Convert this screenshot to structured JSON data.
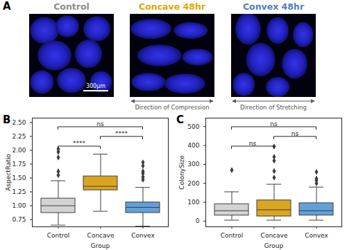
{
  "panel_a": {
    "label": "A",
    "images": [
      {
        "title": "Control",
        "color": "#8c8c8c"
      },
      {
        "title": "Concave 48hr",
        "color": "#e3a600"
      },
      {
        "title": "Convex 48hr",
        "color": "#4f81bd"
      }
    ],
    "scale_bar": "300µm",
    "annotations": [
      {
        "image": "Concave 48hr",
        "text": "Direction of Compression"
      },
      {
        "image": "Convex 48hr",
        "text": "Direction of Stretching"
      }
    ]
  },
  "chart_data": [
    {
      "panel": "B",
      "type": "box",
      "categories": [
        "Control",
        "Concave",
        "Convex"
      ],
      "colors": [
        "#d3d3d3",
        "#daa520",
        "#62a0d8"
      ],
      "x_label": "Group",
      "y_label": "AspectRatio",
      "ylim": [
        0.62,
        2.58
      ],
      "yticks": [
        0.75,
        {
          "value": 1,
          "label": "1.00"
        },
        1.25,
        {
          "value": 1.5,
          "label": "1.50"
        },
        1.75,
        {
          "value": 2,
          "label": "2.00"
        },
        2.25,
        {
          "value": 2.5,
          "label": "2.50"
        }
      ],
      "whisker_low": [
        0.65,
        0.9,
        0.63
      ],
      "q1": [
        0.87,
        1.28,
        0.87
      ],
      "median": [
        1.0,
        1.35,
        0.97
      ],
      "q3": [
        1.13,
        1.53,
        1.06
      ],
      "whisker_high": [
        1.45,
        1.93,
        1.33
      ],
      "outliers": [
        [
          1.55,
          1.62,
          1.87,
          1.97,
          2.02
        ],
        [],
        [
          1.47,
          1.52,
          1.58,
          1.62,
          1.72,
          1.78
        ]
      ],
      "comparisons": [
        {
          "pair": [
            "Control",
            "Concave"
          ],
          "label": "****"
        },
        {
          "pair": [
            "Concave",
            "Convex"
          ],
          "label": "****"
        },
        {
          "pair": [
            "Control",
            "Convex"
          ],
          "label": "ns"
        }
      ]
    },
    {
      "panel": "C",
      "type": "box",
      "categories": [
        "Control",
        "Concave",
        "Convex"
      ],
      "colors": [
        "#d3d3d3",
        "#daa520",
        "#62a0d8"
      ],
      "x_label": "Group",
      "y_label": "ColonySize",
      "ylim": [
        -30,
        545
      ],
      "yticks": [
        0,
        100,
        200,
        300,
        400,
        500
      ],
      "whisker_low": [
        5,
        5,
        5
      ],
      "q1": [
        30,
        25,
        30
      ],
      "median": [
        55,
        60,
        55
      ],
      "q3": [
        90,
        110,
        95
      ],
      "whisker_high": [
        155,
        195,
        180
      ],
      "outliers": [
        [
          270
        ],
        [
          230,
          265,
          320,
          340,
          395
        ],
        [
          200,
          215,
          225,
          260
        ]
      ],
      "comparisons": [
        {
          "pair": [
            "Control",
            "Concave"
          ],
          "label": "ns"
        },
        {
          "pair": [
            "Concave",
            "Convex"
          ],
          "label": "ns"
        },
        {
          "pair": [
            "Control",
            "Convex"
          ],
          "label": "ns"
        }
      ]
    }
  ]
}
